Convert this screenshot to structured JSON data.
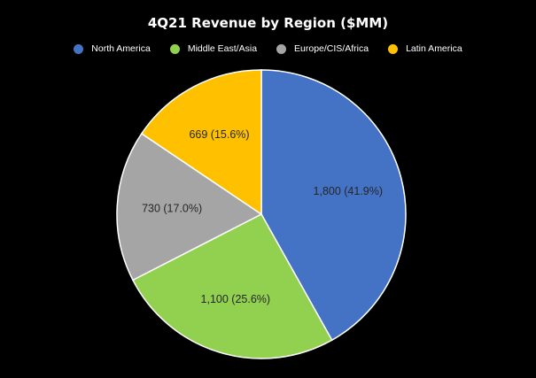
{
  "chart_data": {
    "type": "pie",
    "title": "4Q21 Revenue by Region ($MM)",
    "legend_position": "top",
    "start_angle_deg": 0,
    "direction": "clockwise",
    "slices": [
      {
        "name": "North America",
        "value": 1800,
        "label": "1,800 (41.9%)",
        "color": "#4472C4"
      },
      {
        "name": "Middle East/Asia",
        "value": 1100,
        "label": "1,100 (25.6%)",
        "color": "#92D050"
      },
      {
        "name": "Europe/CIS/Africa",
        "value": 730,
        "label": "730 (17.0%)",
        "color": "#A5A5A5"
      },
      {
        "name": "Latin America",
        "value": 669,
        "label": "669 (15.6%)",
        "color": "#FFC000"
      }
    ]
  }
}
